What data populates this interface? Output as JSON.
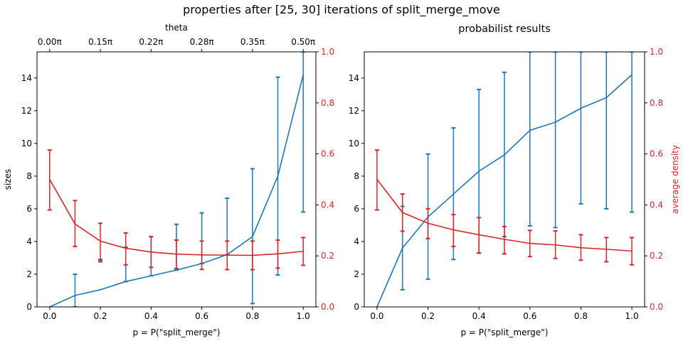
{
  "suptitle": "properties after [25, 30] iterations of split_merge_move",
  "colors": {
    "sizes": "#1f77b4",
    "density": "#d62728",
    "axis": "#000000"
  },
  "chart_data": [
    {
      "type": "line",
      "title": "",
      "top_xlabel": "theta",
      "top_ticks": [
        "0.00π",
        "0.15π",
        "0.22π",
        "0.28π",
        "0.35π",
        "0.50π"
      ],
      "xlabel": "p = P(\"split_merge\")",
      "ylabel": "sizes",
      "ylabel_right": "",
      "xlim": [
        -0.05,
        1.05
      ],
      "ylim": [
        0,
        15.6
      ],
      "ylim_right": [
        0,
        1.0
      ],
      "x_ticks": [
        "0.0",
        "0.2",
        "0.4",
        "0.6",
        "0.8",
        "1.0"
      ],
      "y_ticks": [
        "0",
        "2",
        "4",
        "6",
        "8",
        "10",
        "12",
        "14"
      ],
      "y2_ticks": [
        "0.0",
        "0.2",
        "0.4",
        "0.6",
        "0.8",
        "1.0"
      ],
      "x": [
        0.0,
        0.1,
        0.2,
        0.3,
        0.4,
        0.5,
        0.6,
        0.7,
        0.8,
        0.9,
        1.0
      ],
      "series": [
        {
          "axis": "left",
          "values": [
            0.0,
            0.7,
            1.05,
            1.55,
            1.9,
            2.25,
            2.65,
            3.2,
            4.3,
            8.0,
            14.2
          ],
          "err_low": [
            0.0,
            0.0,
            2.75,
            1.55,
            1.9,
            2.25,
            2.65,
            3.2,
            0.2,
            1.95,
            5.8
          ],
          "err_high": [
            0.0,
            2.0,
            2.9,
            3.65,
            4.3,
            5.05,
            5.75,
            6.65,
            8.45,
            14.05,
            15.6
          ]
        },
        {
          "axis": "right",
          "values": [
            0.5,
            0.325,
            0.258,
            0.23,
            0.215,
            0.207,
            0.204,
            0.203,
            0.202,
            0.208,
            0.218
          ],
          "err_low": [
            0.38,
            0.237,
            0.183,
            0.165,
            0.155,
            0.15,
            0.147,
            0.146,
            0.146,
            0.152,
            0.163
          ],
          "err_high": [
            0.615,
            0.417,
            0.328,
            0.29,
            0.275,
            0.262,
            0.258,
            0.258,
            0.258,
            0.262,
            0.272
          ]
        }
      ]
    },
    {
      "type": "line",
      "title": "probabilist results",
      "top_xlabel": "",
      "top_ticks": [],
      "xlabel": "p = P(\"split_merge\")",
      "ylabel": "",
      "ylabel_right": "average density",
      "xlim": [
        -0.05,
        1.05
      ],
      "ylim": [
        0,
        15.6
      ],
      "ylim_right": [
        0,
        1.0
      ],
      "x_ticks": [
        "0.0",
        "0.2",
        "0.4",
        "0.6",
        "0.8",
        "1.0"
      ],
      "y_ticks": [
        "0",
        "2",
        "4",
        "6",
        "8",
        "10",
        "12",
        "14"
      ],
      "y2_ticks": [
        "0.0",
        "0.2",
        "0.4",
        "0.6",
        "0.8",
        "1.0"
      ],
      "x": [
        0.0,
        0.1,
        0.2,
        0.3,
        0.4,
        0.5,
        0.6,
        0.7,
        0.8,
        0.9,
        1.0
      ],
      "series": [
        {
          "axis": "left",
          "values": [
            0.0,
            3.6,
            5.5,
            6.9,
            8.3,
            9.3,
            10.8,
            11.3,
            12.15,
            12.8,
            14.2
          ],
          "err_low": [
            0.0,
            1.05,
            1.7,
            2.9,
            3.3,
            4.3,
            4.95,
            4.85,
            6.3,
            6.0,
            5.8
          ],
          "err_high": [
            0.0,
            6.15,
            9.35,
            10.95,
            13.3,
            14.35,
            15.6,
            15.6,
            15.6,
            15.6,
            15.6
          ]
        },
        {
          "axis": "right",
          "values": [
            0.5,
            0.37,
            0.328,
            0.302,
            0.283,
            0.265,
            0.249,
            0.243,
            0.232,
            0.226,
            0.219
          ],
          "err_low": [
            0.38,
            0.297,
            0.268,
            0.237,
            0.211,
            0.208,
            0.197,
            0.19,
            0.183,
            0.177,
            0.165
          ],
          "err_high": [
            0.615,
            0.443,
            0.385,
            0.362,
            0.35,
            0.315,
            0.3,
            0.298,
            0.283,
            0.272,
            0.272
          ]
        }
      ]
    }
  ]
}
